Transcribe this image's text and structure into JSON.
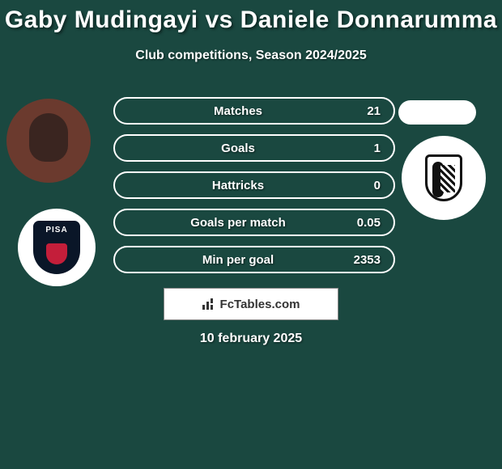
{
  "title": "Gaby Mudingayi vs Daniele Donnarumma",
  "subtitle": "Club competitions, Season 2024/2025",
  "date": "10 february 2025",
  "fctables_label": "FcTables.com",
  "background_color": "#1a4840",
  "left_player": {
    "name": "Gaby Mudingayi",
    "avatar_bg": "#6b3a2e",
    "club": "PISA",
    "club_shield_bg": "#0a1628",
    "club_accent": "#c41e3a"
  },
  "right_player": {
    "name": "Daniele Donnarumma",
    "club": "A.C. Cesena"
  },
  "stats": [
    {
      "label": "Matches",
      "value": "21"
    },
    {
      "label": "Goals",
      "value": "1"
    },
    {
      "label": "Hattricks",
      "value": "0"
    },
    {
      "label": "Goals per match",
      "value": "0.05"
    },
    {
      "label": "Min per goal",
      "value": "2353"
    }
  ],
  "style": {
    "pill_border_color": "#ffffff",
    "pill_text_color": "#ffffff",
    "title_fontsize": 30,
    "subtitle_fontsize": 16,
    "stat_fontsize": 15
  }
}
